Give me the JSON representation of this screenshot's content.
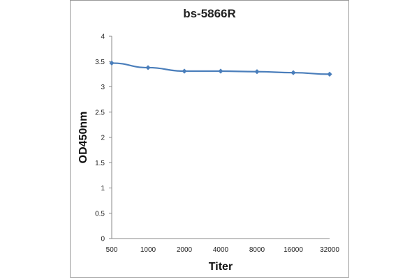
{
  "chart_data": {
    "type": "line",
    "title": "bs-5866R",
    "xlabel": "Titer",
    "ylabel": "OD450nm",
    "categories": [
      "500",
      "1000",
      "2000",
      "4000",
      "8000",
      "16000",
      "32000"
    ],
    "series": [
      {
        "values": [
          3.47,
          3.38,
          3.31,
          3.31,
          3.3,
          3.28,
          3.25
        ]
      }
    ],
    "ylim": [
      0,
      4
    ],
    "yticks": [
      "0",
      "0.5",
      "1",
      "1.5",
      "2",
      "2.5",
      "3",
      "3.5",
      "4"
    ],
    "grid": false,
    "legend": "none",
    "colors": {
      "line": "#4a7ebb",
      "axis": "#888888"
    }
  }
}
